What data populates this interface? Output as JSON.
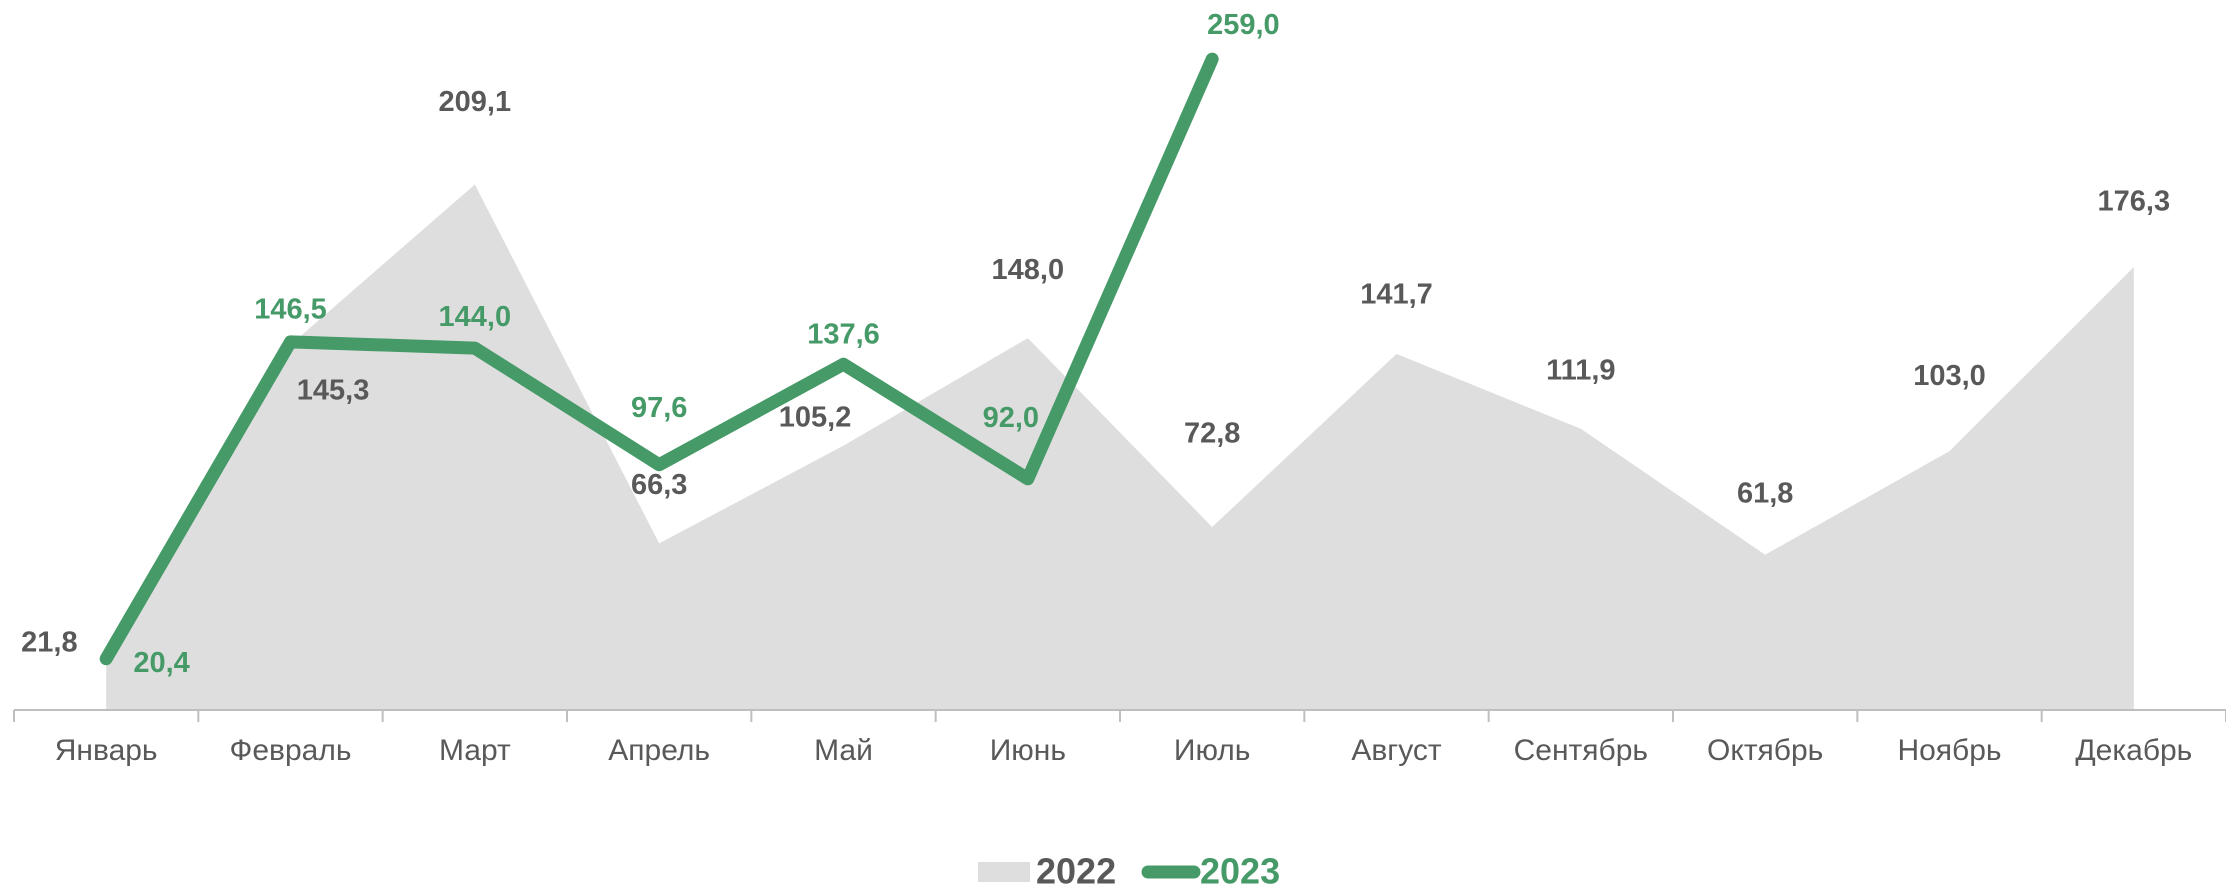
{
  "chart_data": {
    "type": "line",
    "categories": [
      "Январь",
      "Февраль",
      "Март",
      "Апрель",
      "Май",
      "Июнь",
      "Июль",
      "Август",
      "Сентябрь",
      "Октябрь",
      "Ноябрь",
      "Декабрь"
    ],
    "series": [
      {
        "name": "2022",
        "kind": "area",
        "color": "#dedede",
        "label_color": "#595959",
        "values": [
          21.8,
          145.3,
          209.1,
          66.3,
          105.2,
          148.0,
          72.8,
          141.7,
          111.9,
          61.8,
          103.0,
          176.3
        ],
        "value_labels": [
          "21,8",
          "145,3",
          "209,1",
          "66,3",
          "105,2",
          "148,0",
          "72,8",
          "141,7",
          "111,9",
          "61,8",
          "103,0",
          "176,3"
        ]
      },
      {
        "name": "2023",
        "kind": "line",
        "color": "#459a68",
        "label_color": "#459a68",
        "values": [
          20.4,
          146.5,
          144.0,
          97.6,
          137.6,
          92.0,
          259.0,
          null,
          null,
          null,
          null,
          null
        ],
        "value_labels": [
          "20,4",
          "146,5",
          "144,0",
          "97,6",
          "137,6",
          "92,0",
          "259,0",
          null,
          null,
          null,
          null,
          null
        ]
      }
    ]
  }
}
